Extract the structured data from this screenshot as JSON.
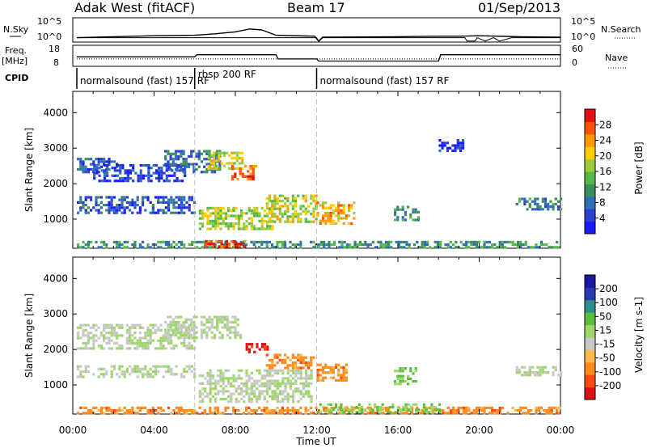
{
  "header": {
    "station": "Adak West (fitACF)",
    "beam": "Beam 17",
    "date": "01/Sep/2013"
  },
  "colors": {
    "low_power": "#1f2bd4",
    "high_power": "#e01010",
    "ground_scatter": "#c8c8c8",
    "neg_velocity": "#ff8c1a",
    "pos_velocity": "#2a3ab0",
    "noise_trace": "#000000"
  },
  "chart_data": [
    {
      "type": "line",
      "panel": "noise",
      "left_label": "N.Sky",
      "right_label": "N.Search",
      "left_ticks": [
        "10^5",
        "10^0"
      ],
      "right_ticks": [
        "10^5",
        "10^0"
      ],
      "ylim": [
        0,
        5
      ],
      "ylog": true,
      "series": [
        {
          "values": [
            [
              0.2,
              0.9
            ],
            [
              2,
              1.1
            ],
            [
              4,
              1.3
            ],
            [
              6,
              1.4
            ],
            [
              7,
              1.7
            ],
            [
              8,
              2.1
            ],
            [
              8.7,
              2.7
            ],
            [
              9.3,
              2.5
            ],
            [
              10,
              1.4
            ],
            [
              11.9,
              1.2
            ],
            [
              12.1,
              0.2
            ],
            [
              12.3,
              1.0
            ],
            [
              16,
              1.1
            ],
            [
              18,
              1.2
            ],
            [
              19,
              1.2
            ],
            [
              20,
              1.3
            ],
            [
              22,
              1.1
            ],
            [
              24,
              1.0
            ]
          ]
        },
        {
          "values": [
            [
              0.2,
              0.9
            ],
            [
              12,
              0.9
            ],
            [
              12.1,
              0.1
            ],
            [
              12.3,
              0.9
            ],
            [
              19.3,
              0.9
            ],
            [
              19.4,
              0.2
            ],
            [
              19.8,
              0.2
            ],
            [
              19.9,
              0.9
            ],
            [
              20.3,
              0.2
            ],
            [
              20.7,
              0.9
            ],
            [
              21,
              0.2
            ],
            [
              21.6,
              0.9
            ],
            [
              24,
              0.9
            ]
          ]
        }
      ]
    },
    {
      "type": "line",
      "panel": "frequency",
      "left_label": "Freq.",
      "left_unit": "[MHz]",
      "right_label": "Nave",
      "left_ticks": [
        "18",
        "8"
      ],
      "right_ticks": [
        "60",
        "0"
      ],
      "ylim": [
        8,
        18
      ],
      "series": [
        {
          "values": [
            [
              0.2,
              12.5
            ],
            [
              6,
              12.5
            ],
            [
              6.1,
              13.5
            ],
            [
              10,
              13.5
            ],
            [
              10.1,
              11.5
            ],
            [
              12,
              11.5
            ],
            [
              12.1,
              10.5
            ],
            [
              18,
              10.5
            ],
            [
              18.1,
              13.5
            ],
            [
              24,
              13.5
            ]
          ]
        },
        {
          "values": [
            [
              0.2,
              11.5
            ],
            [
              24,
              11.5
            ]
          ]
        }
      ]
    },
    {
      "type": "table",
      "panel": "cpid",
      "label": "CPID",
      "segments": [
        {
          "start": 0.2,
          "end": 6.0,
          "name": "normalsound (fast) 157 RF"
        },
        {
          "start": 6.0,
          "end": 12.0,
          "name": "rbsp 200 RF"
        },
        {
          "start": 12.0,
          "end": 24.0,
          "name": "normalsound (fast) 157 RF"
        }
      ]
    },
    {
      "type": "heatmap",
      "panel": "power",
      "ylabel": "Slant Range [km]",
      "yticks": [
        1000,
        2000,
        3000,
        4000
      ],
      "ylim": [
        180,
        4600
      ],
      "xlim": [
        0,
        24
      ],
      "colorbar_label": "Power [dB]",
      "colorbar_ticks": [
        4,
        8,
        12,
        16,
        20,
        24,
        28
      ],
      "colorbar_colors": [
        "#1a1aff",
        "#2b3fd1",
        "#2f6fb7",
        "#3c8f5a",
        "#57b84a",
        "#9ccc3c",
        "#ffcc00",
        "#ff9900",
        "#ff5500",
        "#e01010"
      ],
      "regions": [
        {
          "t0": 0.2,
          "t1": 24,
          "r0": 180,
          "r1": 330,
          "level": 0.35
        },
        {
          "t0": 0.2,
          "t1": 2.2,
          "r0": 2300,
          "r1": 2700,
          "level": 0.2
        },
        {
          "t0": 1.0,
          "t1": 5.5,
          "r0": 2050,
          "r1": 2500,
          "level": 0.15
        },
        {
          "t0": 4.5,
          "t1": 7.2,
          "r0": 2300,
          "r1": 2900,
          "level": 0.25
        },
        {
          "t0": 6.5,
          "t1": 8.3,
          "r0": 2400,
          "r1": 2850,
          "level": 0.6
        },
        {
          "t0": 7.8,
          "t1": 9.0,
          "r0": 2100,
          "r1": 2500,
          "level": 0.85
        },
        {
          "t0": 0.2,
          "t1": 6.0,
          "r0": 1150,
          "r1": 1600,
          "level": 0.2
        },
        {
          "t0": 6.2,
          "t1": 9.8,
          "r0": 700,
          "r1": 1350,
          "level": 0.55
        },
        {
          "t0": 9.5,
          "t1": 12.0,
          "r0": 900,
          "r1": 1700,
          "level": 0.6
        },
        {
          "t0": 12.0,
          "t1": 13.8,
          "r0": 850,
          "r1": 1500,
          "level": 0.7
        },
        {
          "t0": 6.5,
          "t1": 8.5,
          "r0": 200,
          "r1": 380,
          "level": 0.9
        },
        {
          "t0": 15.8,
          "t1": 17.0,
          "r0": 950,
          "r1": 1350,
          "level": 0.35
        },
        {
          "t0": 21.8,
          "t1": 24,
          "r0": 1250,
          "r1": 1550,
          "level": 0.3
        },
        {
          "t0": 18.0,
          "t1": 19.2,
          "r0": 2900,
          "r1": 3200,
          "level": 0.1
        }
      ]
    },
    {
      "type": "heatmap",
      "panel": "velocity",
      "ylabel": "Slant Range [km]",
      "xlabel": "Time UT",
      "yticks": [
        1000,
        2000,
        3000,
        4000
      ],
      "ylim": [
        180,
        4600
      ],
      "xlim": [
        0,
        24
      ],
      "xticks": [
        "00:00",
        "04:00",
        "08:00",
        "12:00",
        "16:00",
        "20:00",
        "00:00"
      ],
      "colorbar_label": "Velocity [m s-1]",
      "colorbar_ticks": [
        -200,
        -100,
        -50,
        -15,
        15,
        50,
        100,
        200
      ],
      "colorbar_colors": [
        "#e01010",
        "#ff4a10",
        "#ff8c1a",
        "#ffb84d",
        "#c8c8c8",
        "#9ed66b",
        "#5bbf3a",
        "#2f8f8f",
        "#2a3ab0",
        "#1a1aa0"
      ],
      "regions": [
        {
          "t0": 0.2,
          "t1": 24,
          "r0": 180,
          "r1": 380,
          "level": 0.25
        },
        {
          "t0": 0.2,
          "t1": 6.0,
          "r0": 2000,
          "r1": 2700,
          "level": 0.5
        },
        {
          "t0": 4.5,
          "t1": 8.3,
          "r0": 2300,
          "r1": 2900,
          "level": 0.5
        },
        {
          "t0": 0.2,
          "t1": 6.0,
          "r0": 1200,
          "r1": 1550,
          "level": 0.5
        },
        {
          "t0": 6.2,
          "t1": 11.8,
          "r0": 500,
          "r1": 1400,
          "level": 0.5
        },
        {
          "t0": 8.5,
          "t1": 9.6,
          "r0": 1900,
          "r1": 2150,
          "level": 0.05
        },
        {
          "t0": 9.5,
          "t1": 11.8,
          "r0": 1450,
          "r1": 1850,
          "level": 0.25
        },
        {
          "t0": 12.0,
          "t1": 13.5,
          "r0": 1100,
          "r1": 1600,
          "level": 0.25
        },
        {
          "t0": 15.8,
          "t1": 16.9,
          "r0": 1000,
          "r1": 1450,
          "level": 0.6
        },
        {
          "t0": 21.8,
          "t1": 24,
          "r0": 1250,
          "r1": 1500,
          "level": 0.5
        },
        {
          "t0": 12.0,
          "t1": 18.0,
          "r0": 200,
          "r1": 420,
          "level": 0.6
        }
      ]
    }
  ]
}
